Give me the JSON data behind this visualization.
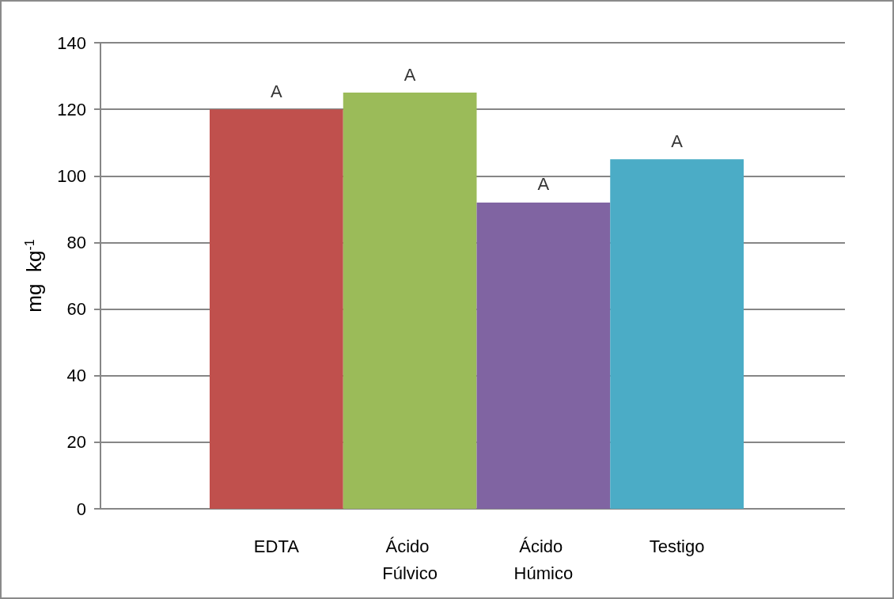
{
  "chart_data": {
    "type": "bar",
    "ylabel": "mg  kg$^{-1}$",
    "categories": [
      "EDTA",
      "Ácido Fúlvico",
      "Ácido Húmico",
      "Testigo"
    ],
    "values": [
      120,
      125,
      92,
      105
    ],
    "colors": [
      "#c0504d",
      "#9bbb59",
      "#8064a2",
      "#4bacc6"
    ],
    "ylim": [
      0,
      140
    ],
    "yticks": [
      0,
      20,
      40,
      60,
      80,
      100,
      120,
      140
    ],
    "grid": "y",
    "annotations": [
      {
        "text": "A",
        "x": "EDTA",
        "y": 120
      },
      {
        "text": "A",
        "x": "Ácido Fúlvico",
        "y": 125
      },
      {
        "text": "A",
        "x": "Ácido Húmico",
        "y": 92
      },
      {
        "text": "A",
        "x": "Testigo",
        "y": 105
      }
    ]
  }
}
